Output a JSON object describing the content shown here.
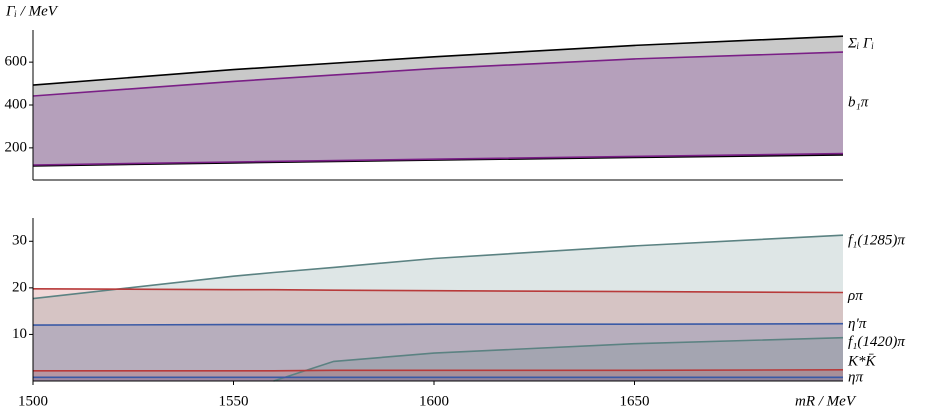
{
  "chart_data": [
    {
      "type": "band",
      "ylabel": "Γᵢ / MeV",
      "x": [
        1500,
        1550,
        1600,
        1650,
        1702
      ],
      "xlim": [
        1500,
        1702
      ],
      "ylim": [
        50,
        750
      ],
      "yticks": [
        200,
        400,
        600
      ],
      "series": [
        {
          "name": "Σᵢ Γᵢ",
          "color": "#000000",
          "fill": "#c9c9c9",
          "upper": [
            493,
            565,
            625,
            678,
            721
          ],
          "lower": [
            116,
            130,
            143,
            155,
            167
          ]
        },
        {
          "name": "b₁π",
          "color": "#7a1f86",
          "fill": "#b5a0bb",
          "upper": [
            442,
            510,
            570,
            615,
            647
          ],
          "lower": [
            120,
            134,
            147,
            160,
            173
          ]
        }
      ]
    },
    {
      "type": "area",
      "xlabel": "mR / MeV",
      "x": [
        1500,
        1550,
        1560,
        1575,
        1600,
        1650,
        1702
      ],
      "xlim": [
        1500,
        1702
      ],
      "xticks": [
        1500,
        1550,
        1600,
        1650
      ],
      "ylim": [
        0,
        35
      ],
      "yticks": [
        10,
        20,
        30
      ],
      "series": [
        {
          "name": "f₁(1285)π",
          "color": "#5b8282",
          "values": [
            17.7,
            22.5,
            23.3,
            24.4,
            26.3,
            29.0,
            31.3
          ]
        },
        {
          "name": "ρπ",
          "color": "#b83a3a",
          "values": [
            19.8,
            19.6,
            19.6,
            19.5,
            19.4,
            19.2,
            19.0
          ]
        },
        {
          "name": "η′π",
          "color": "#3a5aa6",
          "values": [
            12.0,
            12.1,
            12.1,
            12.1,
            12.2,
            12.2,
            12.3
          ]
        },
        {
          "name": "f₁(1420)π",
          "color": "#5b8282",
          "values": [
            null,
            null,
            0,
            4.2,
            6.0,
            8.0,
            9.3
          ]
        },
        {
          "name": "K*K̄",
          "color": "#b83a3a",
          "values": [
            2.2,
            2.2,
            2.2,
            2.3,
            2.3,
            2.3,
            2.4
          ]
        },
        {
          "name": "ηπ",
          "color": "#3a5aa6",
          "values": [
            0.8,
            0.8,
            0.8,
            0.8,
            0.8,
            0.8,
            0.8
          ]
        }
      ]
    }
  ]
}
